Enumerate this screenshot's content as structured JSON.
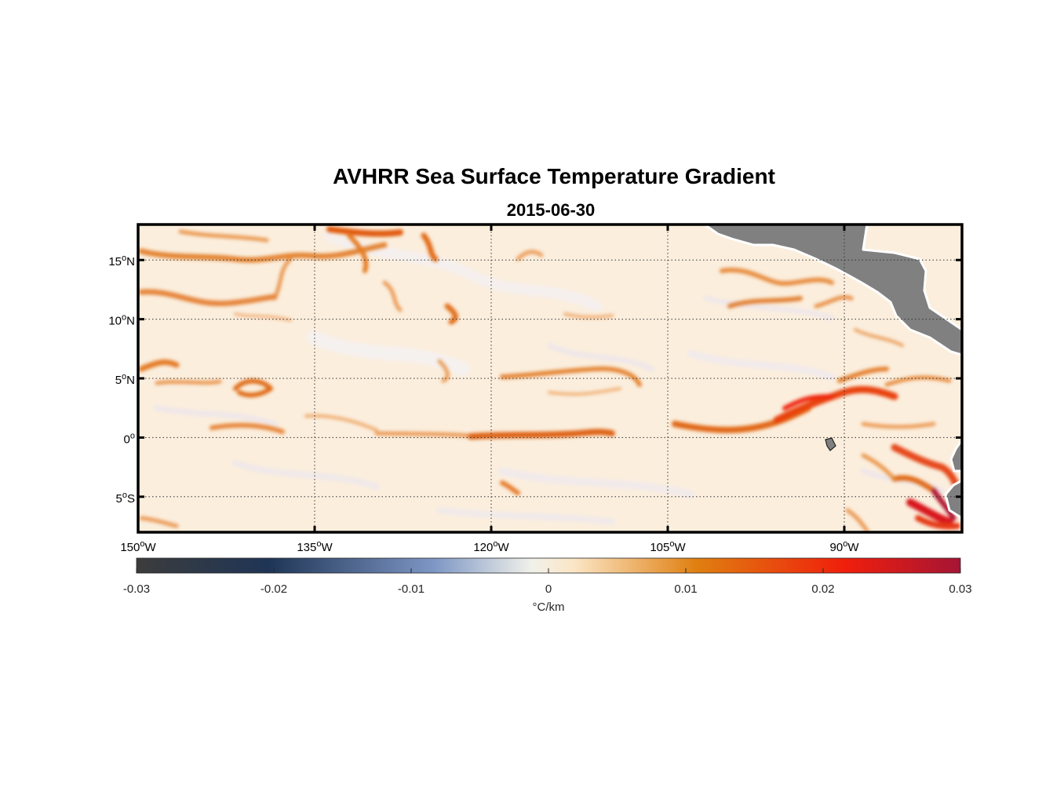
{
  "map": {
    "title": "AVHRR Sea Surface Temperature Gradient",
    "subtitle": "2015-06-30",
    "lon_range": [
      -150,
      -80
    ],
    "lat_range": [
      -8,
      18
    ],
    "lat_ticks": [
      {
        "value": 15,
        "num": "15",
        "hem": "N"
      },
      {
        "value": 10,
        "num": "10",
        "hem": "N"
      },
      {
        "value": 5,
        "num": "5",
        "hem": "N"
      },
      {
        "value": 0,
        "num": "0",
        "hem": ""
      },
      {
        "value": -5,
        "num": "5",
        "hem": "S"
      }
    ],
    "lon_ticks": [
      {
        "value": -150,
        "num": "150",
        "hem": "W"
      },
      {
        "value": -135,
        "num": "135",
        "hem": "W"
      },
      {
        "value": -120,
        "num": "120",
        "hem": "W"
      },
      {
        "value": -105,
        "num": "105",
        "hem": "W"
      },
      {
        "value": -90,
        "num": "90",
        "hem": "W"
      }
    ],
    "grid": "dotted",
    "land_color": "#808080",
    "ocean_base_color": "#fbeedd"
  },
  "colorbar": {
    "range": [
      -0.03,
      0.03
    ],
    "ticks": [
      {
        "value": -0.03,
        "label": "-0.03"
      },
      {
        "value": -0.02,
        "label": "-0.02"
      },
      {
        "value": -0.01,
        "label": "-0.01"
      },
      {
        "value": 0,
        "label": "0"
      },
      {
        "value": 0.01,
        "label": "0.01"
      },
      {
        "value": 0.02,
        "label": "0.02"
      },
      {
        "value": 0.03,
        "label": "0.03"
      }
    ],
    "unit_label": "°C/km",
    "stops": [
      "#3c3c3c",
      "#1f3556",
      "#7d96c4",
      "#f1f1ea",
      "#fbe6c6",
      "#e07f10",
      "#f01e0c",
      "#a51535"
    ]
  }
}
